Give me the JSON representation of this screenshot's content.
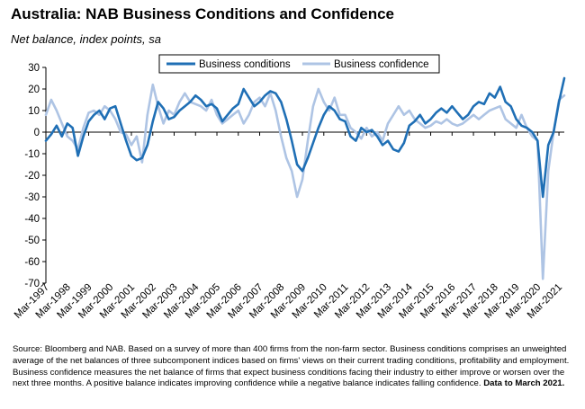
{
  "title": "Australia: NAB Business Conditions and Confidence",
  "subtitle": "Net balance, index points, sa",
  "source_text": "Source: Bloomberg and NAB. Based on a survey of more than 400 firms from the non-farm sector.  Business conditions comprises an unweighted average of the net balances of three subcomponent indices based on firms' views on their current trading conditions, profitability and employment.  Business confidence measures the net balance of firms that expect business conditions facing their industry to either improve or worsen over the next three months.  A positive balance indicates improving confidence while a negative balance indicates falling confidence.",
  "source_bold": "Data to March 2021.",
  "colors": {
    "conditions": "#1f6fb5",
    "confidence": "#aec4e4",
    "axis": "#000000"
  },
  "chart_data": {
    "type": "line",
    "x_tick_labels": [
      "Mar-1997",
      "Mar-1998",
      "Mar-1999",
      "Mar-2000",
      "Mar-2001",
      "Mar-2002",
      "Mar-2003",
      "Mar-2004",
      "Mar-2005",
      "Mar-2006",
      "Mar-2007",
      "Mar-2008",
      "Mar-2009",
      "Mar-2010",
      "Mar-2011",
      "Mar-2012",
      "Mar-2013",
      "Mar-2014",
      "Mar-2015",
      "Mar-2016",
      "Mar-2017",
      "Mar-2018",
      "Mar-2019",
      "Mar-2020",
      "Mar-2021"
    ],
    "y_ticks": [
      30,
      20,
      10,
      0,
      -10,
      -20,
      -30,
      -40,
      -50,
      -60,
      -70
    ],
    "ylim": [
      -70,
      30
    ],
    "xlim": [
      1997.0,
      2021.25
    ],
    "legend_position": "top",
    "series": [
      {
        "name": "Business conditions",
        "color_key": "conditions",
        "points": [
          [
            1997.0,
            -4
          ],
          [
            1997.25,
            -1
          ],
          [
            1997.5,
            3
          ],
          [
            1997.75,
            -2
          ],
          [
            1998.0,
            4
          ],
          [
            1998.25,
            2
          ],
          [
            1998.5,
            -11
          ],
          [
            1998.75,
            -2
          ],
          [
            1999.0,
            5
          ],
          [
            1999.25,
            8
          ],
          [
            1999.5,
            10
          ],
          [
            1999.75,
            6
          ],
          [
            2000.0,
            11
          ],
          [
            2000.25,
            12
          ],
          [
            2000.5,
            4
          ],
          [
            2000.75,
            -4
          ],
          [
            2001.0,
            -11
          ],
          [
            2001.25,
            -13
          ],
          [
            2001.5,
            -12
          ],
          [
            2001.75,
            -6
          ],
          [
            2002.0,
            5
          ],
          [
            2002.25,
            14
          ],
          [
            2002.5,
            11
          ],
          [
            2002.75,
            6
          ],
          [
            2003.0,
            7
          ],
          [
            2003.25,
            10
          ],
          [
            2003.5,
            12
          ],
          [
            2003.75,
            14
          ],
          [
            2004.0,
            17
          ],
          [
            2004.25,
            15
          ],
          [
            2004.5,
            12
          ],
          [
            2004.75,
            13
          ],
          [
            2005.0,
            11
          ],
          [
            2005.25,
            5
          ],
          [
            2005.5,
            8
          ],
          [
            2005.75,
            11
          ],
          [
            2006.0,
            13
          ],
          [
            2006.25,
            20
          ],
          [
            2006.5,
            16
          ],
          [
            2006.75,
            12
          ],
          [
            2007.0,
            14
          ],
          [
            2007.25,
            17
          ],
          [
            2007.5,
            19
          ],
          [
            2007.75,
            18
          ],
          [
            2008.0,
            14
          ],
          [
            2008.25,
            6
          ],
          [
            2008.5,
            -4
          ],
          [
            2008.75,
            -15
          ],
          [
            2009.0,
            -18
          ],
          [
            2009.25,
            -12
          ],
          [
            2009.5,
            -5
          ],
          [
            2009.75,
            2
          ],
          [
            2010.0,
            8
          ],
          [
            2010.25,
            12
          ],
          [
            2010.5,
            10
          ],
          [
            2010.75,
            6
          ],
          [
            2011.0,
            5
          ],
          [
            2011.25,
            -2
          ],
          [
            2011.5,
            -4
          ],
          [
            2011.75,
            2
          ],
          [
            2012.0,
            0
          ],
          [
            2012.25,
            1
          ],
          [
            2012.5,
            -2
          ],
          [
            2012.75,
            -6
          ],
          [
            2013.0,
            -4
          ],
          [
            2013.25,
            -8
          ],
          [
            2013.5,
            -9
          ],
          [
            2013.75,
            -5
          ],
          [
            2014.0,
            3
          ],
          [
            2014.25,
            5
          ],
          [
            2014.5,
            8
          ],
          [
            2014.75,
            4
          ],
          [
            2015.0,
            6
          ],
          [
            2015.25,
            9
          ],
          [
            2015.5,
            11
          ],
          [
            2015.75,
            9
          ],
          [
            2016.0,
            12
          ],
          [
            2016.25,
            9
          ],
          [
            2016.5,
            6
          ],
          [
            2016.75,
            8
          ],
          [
            2017.0,
            12
          ],
          [
            2017.25,
            14
          ],
          [
            2017.5,
            13
          ],
          [
            2017.75,
            18
          ],
          [
            2018.0,
            16
          ],
          [
            2018.25,
            21
          ],
          [
            2018.5,
            14
          ],
          [
            2018.75,
            12
          ],
          [
            2019.0,
            6
          ],
          [
            2019.25,
            3
          ],
          [
            2019.5,
            2
          ],
          [
            2019.75,
            0
          ],
          [
            2020.0,
            -4
          ],
          [
            2020.25,
            -30
          ],
          [
            2020.5,
            -6
          ],
          [
            2020.75,
            0
          ],
          [
            2021.0,
            14
          ],
          [
            2021.25,
            25
          ]
        ]
      },
      {
        "name": "Business confidence",
        "color_key": "confidence",
        "points": [
          [
            1997.0,
            8
          ],
          [
            1997.25,
            15
          ],
          [
            1997.5,
            10
          ],
          [
            1997.75,
            4
          ],
          [
            1998.0,
            -2
          ],
          [
            1998.25,
            -4
          ],
          [
            1998.5,
            -8
          ],
          [
            1998.75,
            2
          ],
          [
            1999.0,
            9
          ],
          [
            1999.25,
            10
          ],
          [
            1999.5,
            8
          ],
          [
            1999.75,
            12
          ],
          [
            2000.0,
            10
          ],
          [
            2000.25,
            6
          ],
          [
            2000.5,
            0
          ],
          [
            2000.75,
            -1
          ],
          [
            2001.0,
            -6
          ],
          [
            2001.25,
            -2
          ],
          [
            2001.5,
            -14
          ],
          [
            2001.75,
            8
          ],
          [
            2002.0,
            22
          ],
          [
            2002.25,
            12
          ],
          [
            2002.5,
            4
          ],
          [
            2002.75,
            10
          ],
          [
            2003.0,
            8
          ],
          [
            2003.25,
            14
          ],
          [
            2003.5,
            18
          ],
          [
            2003.75,
            14
          ],
          [
            2004.0,
            13
          ],
          [
            2004.25,
            12
          ],
          [
            2004.5,
            10
          ],
          [
            2004.75,
            15
          ],
          [
            2005.0,
            8
          ],
          [
            2005.25,
            4
          ],
          [
            2005.5,
            6
          ],
          [
            2005.75,
            8
          ],
          [
            2006.0,
            10
          ],
          [
            2006.25,
            4
          ],
          [
            2006.5,
            8
          ],
          [
            2006.75,
            14
          ],
          [
            2007.0,
            16
          ],
          [
            2007.25,
            12
          ],
          [
            2007.5,
            18
          ],
          [
            2007.75,
            10
          ],
          [
            2008.0,
            -2
          ],
          [
            2008.25,
            -12
          ],
          [
            2008.5,
            -18
          ],
          [
            2008.75,
            -30
          ],
          [
            2009.0,
            -22
          ],
          [
            2009.25,
            -4
          ],
          [
            2009.5,
            12
          ],
          [
            2009.75,
            20
          ],
          [
            2010.0,
            14
          ],
          [
            2010.25,
            10
          ],
          [
            2010.5,
            16
          ],
          [
            2010.75,
            8
          ],
          [
            2011.0,
            8
          ],
          [
            2011.25,
            2
          ],
          [
            2011.5,
            0
          ],
          [
            2011.75,
            -3
          ],
          [
            2012.0,
            2
          ],
          [
            2012.25,
            -2
          ],
          [
            2012.5,
            0
          ],
          [
            2012.75,
            -4
          ],
          [
            2013.0,
            4
          ],
          [
            2013.25,
            8
          ],
          [
            2013.5,
            12
          ],
          [
            2013.75,
            8
          ],
          [
            2014.0,
            10
          ],
          [
            2014.25,
            6
          ],
          [
            2014.5,
            4
          ],
          [
            2014.75,
            2
          ],
          [
            2015.0,
            3
          ],
          [
            2015.25,
            5
          ],
          [
            2015.5,
            4
          ],
          [
            2015.75,
            6
          ],
          [
            2016.0,
            4
          ],
          [
            2016.25,
            3
          ],
          [
            2016.5,
            4
          ],
          [
            2016.75,
            6
          ],
          [
            2017.0,
            8
          ],
          [
            2017.25,
            6
          ],
          [
            2017.5,
            8
          ],
          [
            2017.75,
            10
          ],
          [
            2018.0,
            11
          ],
          [
            2018.25,
            12
          ],
          [
            2018.5,
            6
          ],
          [
            2018.75,
            4
          ],
          [
            2019.0,
            2
          ],
          [
            2019.25,
            8
          ],
          [
            2019.5,
            2
          ],
          [
            2019.75,
            -2
          ],
          [
            2020.0,
            -4
          ],
          [
            2020.25,
            -68
          ],
          [
            2020.5,
            -18
          ],
          [
            2020.75,
            0
          ],
          [
            2021.0,
            15
          ],
          [
            2021.25,
            17
          ]
        ]
      }
    ]
  }
}
